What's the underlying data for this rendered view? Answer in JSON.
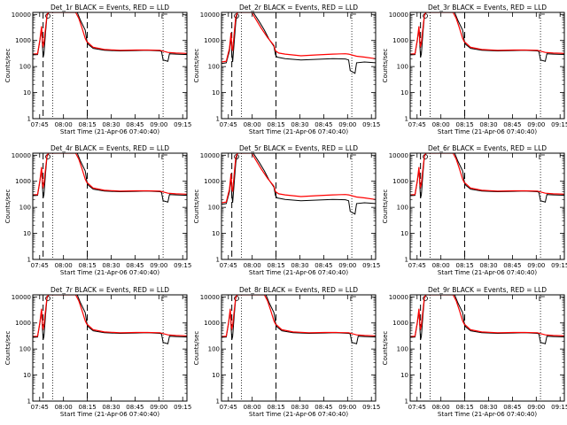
{
  "chart_data": {
    "type": "line",
    "layout": "3x3 grid of panels",
    "panels": [
      {
        "title": "Det_1r BLACK = Events, RED = LLD",
        "profile": "a"
      },
      {
        "title": "Det_2r BLACK = Events, RED = LLD",
        "profile": "b"
      },
      {
        "title": "Det_3r BLACK = Events, RED = LLD",
        "profile": "a"
      },
      {
        "title": "Det_4r BLACK = Events, RED = LLD",
        "profile": "a"
      },
      {
        "title": "Det_5r BLACK = Events, RED = LLD",
        "profile": "b"
      },
      {
        "title": "Det_6r BLACK = Events, RED = LLD",
        "profile": "a"
      },
      {
        "title": "Det_7r BLACK = Events, RED = LLD",
        "profile": "a"
      },
      {
        "title": "Det_8r BLACK = Events, RED = LLD",
        "profile": "a"
      },
      {
        "title": "Det_9r BLACK = Events, RED = LLD",
        "profile": "a"
      }
    ],
    "xlabel": "Start Time (21-Apr-06 07:40:40)",
    "ylabel": "Counts/sec",
    "x_ticks": [
      "07:45",
      "08:00",
      "08:15",
      "08:30",
      "08:45",
      "09:00",
      "09:15"
    ],
    "x_tick_minutes": [
      4.33,
      19.33,
      34.33,
      49.33,
      64.33,
      79.33,
      94.33
    ],
    "xlim_minutes": [
      0,
      97
    ],
    "yscale": "log",
    "ylim": [
      1,
      12000
    ],
    "y_ticks": [
      1,
      10,
      100,
      1000,
      10000
    ],
    "y_tick_labels": [
      "1",
      "10",
      "100",
      "1000",
      "10000"
    ],
    "dashed_vlines_minutes": [
      6.5,
      34.3
    ],
    "dotted_vlines_minutes": [
      12.5,
      82.0
    ],
    "top_markers_minutes": [
      9.5,
      83.0
    ],
    "series_colors": {
      "events": "#000000",
      "lld": "#ff0000"
    },
    "profiles": {
      "a": {
        "events": [
          [
            0,
            280
          ],
          [
            3,
            290
          ],
          [
            4.5,
            1000
          ],
          [
            5.5,
            3000
          ],
          [
            6.2,
            500
          ],
          [
            6.5,
            230
          ],
          [
            7,
            300
          ],
          [
            8,
            2000
          ],
          [
            9,
            9000
          ],
          [
            10,
            12000
          ],
          [
            28,
            12000
          ],
          [
            30,
            6000
          ],
          [
            33,
            2500
          ],
          [
            34,
            1000
          ],
          [
            35,
            700
          ],
          [
            38,
            500
          ],
          [
            45,
            420
          ],
          [
            55,
            400
          ],
          [
            65,
            410
          ],
          [
            72,
            420
          ],
          [
            80,
            400
          ],
          [
            81,
            380
          ],
          [
            82,
            180
          ],
          [
            85,
            160
          ],
          [
            86,
            310
          ],
          [
            90,
            300
          ],
          [
            97,
            290
          ]
        ],
        "lld": [
          [
            0,
            300
          ],
          [
            3,
            310
          ],
          [
            4.5,
            1100
          ],
          [
            5.5,
            3500
          ],
          [
            6.2,
            700
          ],
          [
            6.5,
            600
          ],
          [
            7,
            800
          ],
          [
            8,
            3000
          ],
          [
            9,
            10000
          ],
          [
            10,
            12000
          ],
          [
            27,
            12000
          ],
          [
            29,
            7000
          ],
          [
            31,
            3000
          ],
          [
            33,
            1200
          ],
          [
            34,
            900
          ],
          [
            35,
            800
          ],
          [
            38,
            550
          ],
          [
            45,
            450
          ],
          [
            55,
            420
          ],
          [
            65,
            430
          ],
          [
            72,
            430
          ],
          [
            80,
            420
          ],
          [
            85,
            350
          ],
          [
            90,
            330
          ],
          [
            97,
            320
          ]
        ]
      },
      "b": {
        "events": [
          [
            0,
            130
          ],
          [
            3,
            140
          ],
          [
            5,
            400
          ],
          [
            6,
            1500
          ],
          [
            6.5,
            300
          ],
          [
            7,
            150
          ],
          [
            8,
            900
          ],
          [
            9,
            5000
          ],
          [
            10,
            12000
          ],
          [
            20,
            12000
          ],
          [
            24,
            5000
          ],
          [
            27,
            2500
          ],
          [
            30,
            1100
          ],
          [
            33,
            600
          ],
          [
            34,
            280
          ],
          [
            35,
            230
          ],
          [
            40,
            200
          ],
          [
            50,
            180
          ],
          [
            60,
            190
          ],
          [
            70,
            200
          ],
          [
            78,
            195
          ],
          [
            80,
            180
          ],
          [
            81,
            70
          ],
          [
            84,
            55
          ],
          [
            85,
            140
          ],
          [
            90,
            150
          ],
          [
            97,
            140
          ]
        ],
        "lld": [
          [
            0,
            150
          ],
          [
            3,
            160
          ],
          [
            5,
            500
          ],
          [
            6,
            2000
          ],
          [
            6.5,
            500
          ],
          [
            7,
            400
          ],
          [
            8,
            2000
          ],
          [
            9,
            8000
          ],
          [
            10,
            12000
          ],
          [
            19,
            12000
          ],
          [
            22,
            6000
          ],
          [
            25,
            3000
          ],
          [
            29,
            1300
          ],
          [
            33,
            650
          ],
          [
            34,
            400
          ],
          [
            36,
            330
          ],
          [
            40,
            300
          ],
          [
            50,
            260
          ],
          [
            60,
            280
          ],
          [
            70,
            300
          ],
          [
            78,
            310
          ],
          [
            80,
            300
          ],
          [
            85,
            250
          ],
          [
            90,
            230
          ],
          [
            97,
            200
          ]
        ]
      }
    }
  }
}
